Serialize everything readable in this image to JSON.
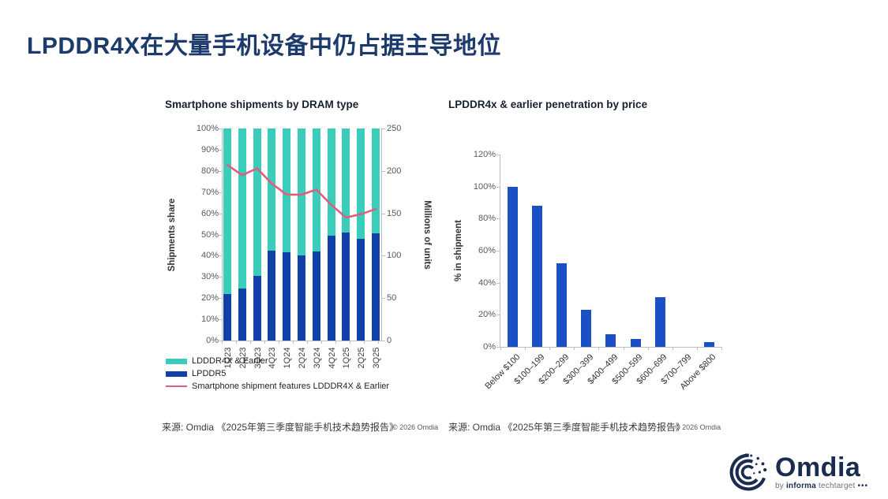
{
  "page": {
    "title": "LPDDR4X在大量手机设备中仍占据主导地位"
  },
  "footer": {
    "source": "来源: Omdia 《2025年第三季度智能手机技术趋势报告》",
    "copyright": "© 2026 Omdia"
  },
  "logo": {
    "name": "Omdia",
    "tagline_by": "by",
    "tagline_brand": "informa",
    "tagline_suffix": "techtarget",
    "tagline_dots": "•••"
  },
  "colors": {
    "teal": "#3ACDBB",
    "navy_bar": "#1140A8",
    "royal_bar": "#1A50C4",
    "line_pink": "#E25C7C",
    "title_navy": "#1C3A6C",
    "axis_line": "#BFBFBF",
    "tick_text": "#595959"
  },
  "chart_data": [
    {
      "type": "bar",
      "variant": "stacked-100pct-with-line",
      "title": "Smartphone shipments by DRAM type",
      "categories": [
        "1Q23",
        "2Q23",
        "3Q23",
        "4Q23",
        "1Q24",
        "2Q24",
        "3Q24",
        "4Q24",
        "1Q25",
        "2Q25",
        "3Q25"
      ],
      "series": [
        {
          "name": "LPDDR5",
          "type": "bar",
          "axis": "left",
          "unit": "% of shipments",
          "values": [
            22,
            24.5,
            30.5,
            42.5,
            41.5,
            40,
            42,
            49.5,
            51,
            48,
            50.5
          ]
        },
        {
          "name": "LDDDR4X & Earlier",
          "type": "bar",
          "axis": "left",
          "unit": "% of shipments",
          "values": [
            78,
            75.5,
            69.5,
            57.5,
            58.5,
            60,
            58,
            50.5,
            49,
            52,
            49.5
          ]
        },
        {
          "name": "Smartphone shipment features LDDDR4X & Earlier",
          "type": "line",
          "axis": "right",
          "unit": "millions of units",
          "values": [
            207,
            195,
            203,
            185,
            172,
            172,
            178,
            160,
            145,
            149,
            155
          ]
        }
      ],
      "ylabel_left": "Shipments share",
      "ylabel_right": "Millions of units",
      "ylim_left": [
        0,
        100
      ],
      "ylim_right": [
        0,
        250
      ],
      "yticks_left": [
        "100%",
        "90%",
        "80%",
        "70%",
        "60%",
        "50%",
        "40%",
        "30%",
        "20%",
        "10%",
        "0%"
      ],
      "yticks_right": [
        "250",
        "200",
        "150",
        "100",
        "50",
        "0"
      ],
      "grid": false,
      "legend_position": "bottom-left",
      "legend": [
        {
          "label": "LDDDR4X & Earlier",
          "swatch": "teal-rect"
        },
        {
          "label": "LPDDR5",
          "swatch": "navy-rect"
        },
        {
          "label": "Smartphone shipment features LDDDR4X & Earlier",
          "swatch": "pink-line"
        }
      ]
    },
    {
      "type": "bar",
      "title": "LPDDR4x & earlier penetration by price",
      "categories": [
        "Below $100",
        "$100–199",
        "$200–299",
        "$300–399",
        "$400–499",
        "$500–599",
        "$600–699",
        "$700–799",
        "Above $800"
      ],
      "values": [
        100,
        88,
        52,
        23,
        8,
        5,
        31,
        0,
        3
      ],
      "ylabel": "% in shipment",
      "ylim": [
        0,
        120
      ],
      "yticks": [
        "120%",
        "100%",
        "80%",
        "60%",
        "40%",
        "20%",
        "0%"
      ],
      "grid": false,
      "legend_position": "none"
    }
  ]
}
